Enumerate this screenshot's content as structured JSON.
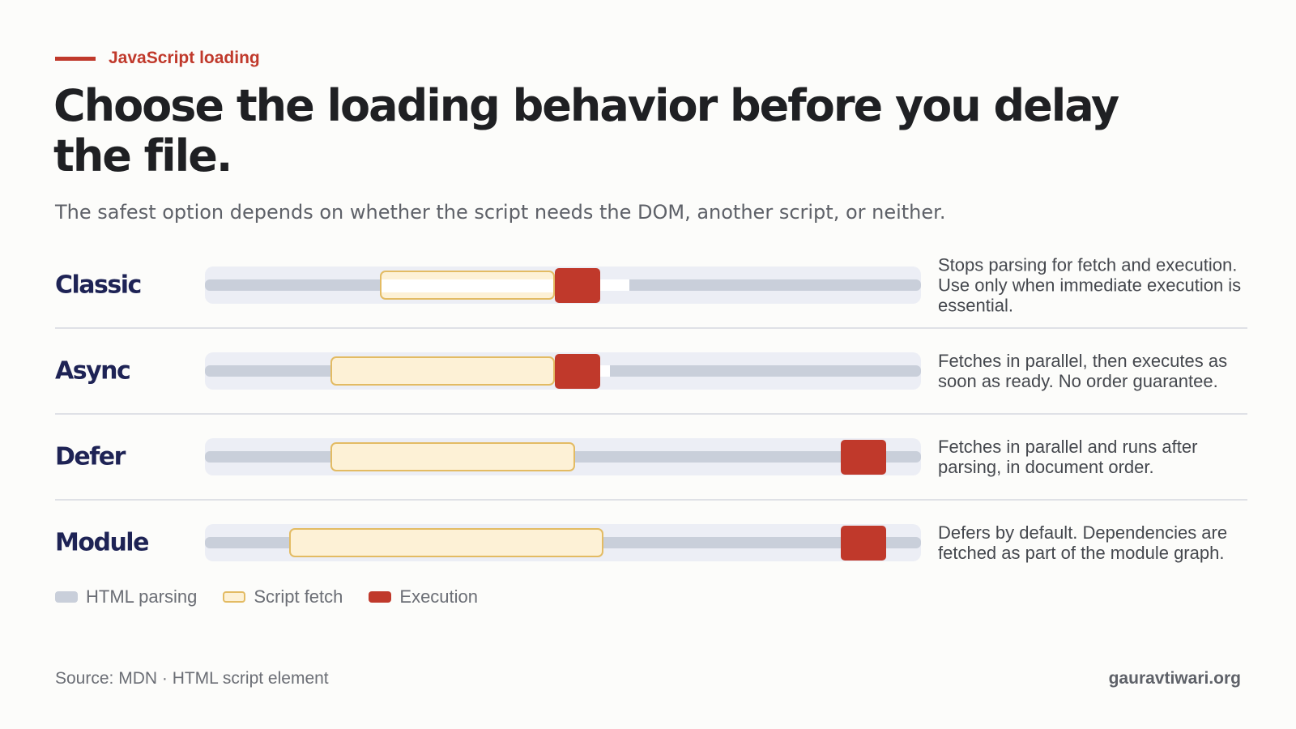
{
  "eyebrow": "JavaScript loading",
  "title": "Choose the loading behavior before you delay the file.",
  "subtitle": "The safest option depends on whether the script needs the DOM, another script, or neither.",
  "rows": [
    {
      "label": "Classic",
      "description": "Stops parsing for fetch and execution. Use only when immediate execution is essential."
    },
    {
      "label": "Async",
      "description": "Fetches in parallel, then executes as soon as ready. No order guarantee."
    },
    {
      "label": "Defer",
      "description": "Fetches in parallel and runs after parsing, in document order."
    },
    {
      "label": "Module",
      "description": "Defers by default. Dependencies are fetched as part of the module graph."
    }
  ],
  "legend": {
    "parsing": "HTML parsing",
    "fetch": "Script fetch",
    "execution": "Execution"
  },
  "source": "Source: MDN · HTML script element",
  "site": "gauravtiwari.org",
  "colors": {
    "accent": "#c0392b",
    "parsing": "#c9cfda",
    "fetch_fill": "#fdf1d6",
    "fetch_border": "#e3bb63",
    "execution": "#c0392b",
    "label": "#1e2355"
  },
  "chart_data": {
    "type": "timeline",
    "rows": [
      {
        "name": "Classic",
        "parsing": "paused during fetch and execution",
        "fetch_phase": "blocks parsing",
        "execution_phase": "immediately after fetch"
      },
      {
        "name": "Async",
        "parsing": "continues during fetch, paused during execution",
        "fetch_phase": "parallel",
        "execution_phase": "as soon as ready"
      },
      {
        "name": "Defer",
        "parsing": "continues",
        "fetch_phase": "parallel",
        "execution_phase": "after parsing"
      },
      {
        "name": "Module",
        "parsing": "continues",
        "fetch_phase": "parallel",
        "execution_phase": "after parsing"
      }
    ]
  }
}
